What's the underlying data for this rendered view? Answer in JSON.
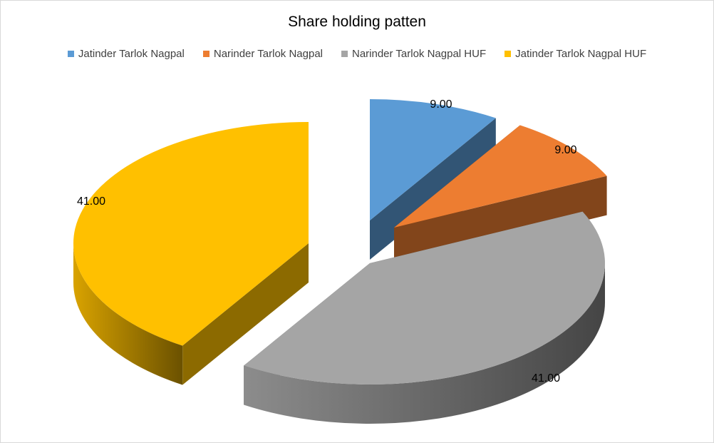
{
  "chart_data": {
    "type": "pie",
    "title": "Share holding patten",
    "legend_position": "top",
    "categories": [
      "Jatinder Tarlok Nagpal",
      "Narinder Tarlok Nagpal",
      "Narinder Tarlok Nagpal HUF",
      "Jatinder Tarlok Nagpal HUF"
    ],
    "values": [
      9.0,
      9.0,
      41.0,
      41.0
    ],
    "data_labels": [
      "9.00",
      "9.00",
      "41.00",
      "41.00"
    ],
    "colors": [
      "#5b9bd5",
      "#ed7d31",
      "#a5a5a5",
      "#ffc000"
    ],
    "exploded": true,
    "three_d": true
  }
}
